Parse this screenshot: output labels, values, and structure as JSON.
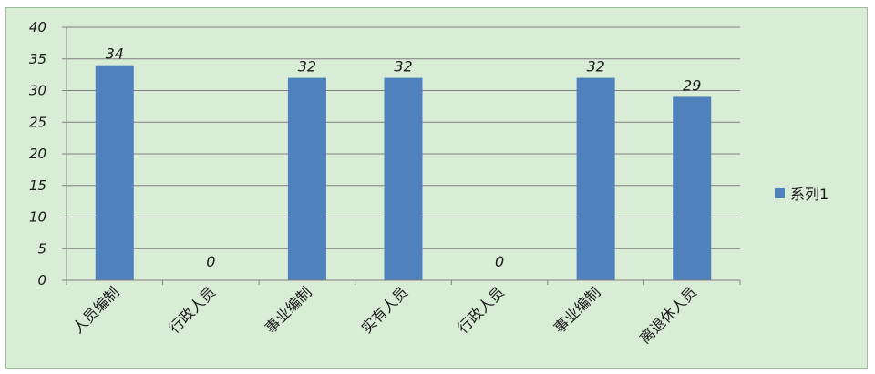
{
  "chart_data": {
    "type": "bar",
    "categories": [
      "人员编制",
      "行政人员",
      "事业编制",
      "实有人员",
      "行政人员",
      "事业编制",
      "离退休人员"
    ],
    "series": [
      {
        "name": "系列1",
        "values": [
          34,
          0,
          32,
          32,
          0,
          32,
          29
        ]
      }
    ],
    "data_labels": [
      "34",
      "0",
      "32",
      "32",
      "0",
      "32",
      "29"
    ],
    "ylim": [
      0,
      40
    ],
    "yticks": [
      0,
      5,
      10,
      15,
      20,
      25,
      30,
      35,
      40
    ],
    "grid": true,
    "legend_position": "right",
    "bar_color": "#4f81bd",
    "background_color": "#d8ecd6"
  }
}
